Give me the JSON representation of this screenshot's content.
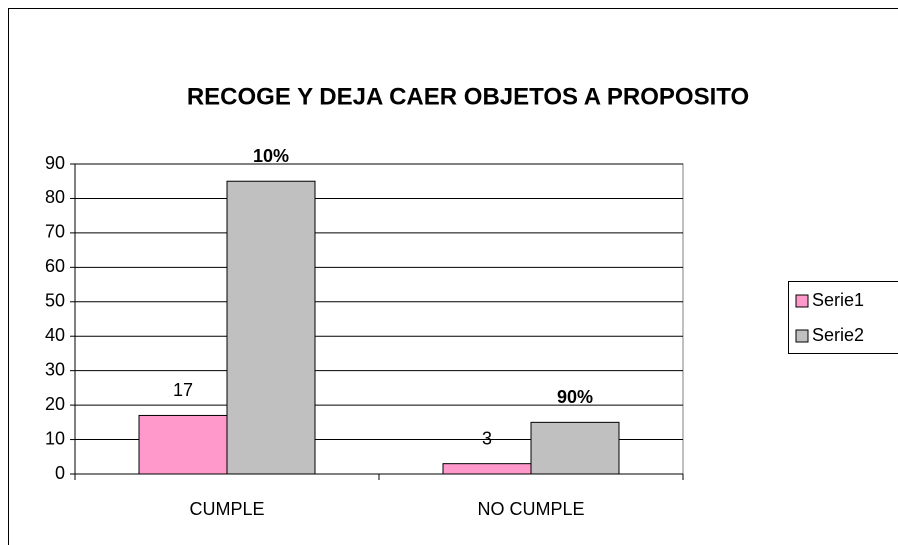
{
  "chart_data": {
    "type": "bar",
    "title": "RECOGE Y DEJA CAER OBJETOS A PROPOSITO",
    "categories": [
      "CUMPLE",
      "NO CUMPLE"
    ],
    "series": [
      {
        "name": "Serie1",
        "color": "#ff99cc",
        "values": [
          17,
          3
        ],
        "data_labels": true
      },
      {
        "name": "Serie2",
        "color": "#c0c0c0",
        "values": [
          85,
          15
        ],
        "data_labels": false
      }
    ],
    "annotations": [
      "10%",
      "90%"
    ],
    "ylim": [
      0,
      90
    ],
    "yticks": [
      0,
      10,
      20,
      30,
      40,
      50,
      60,
      70,
      80,
      90
    ],
    "grid": true,
    "legend": "right"
  }
}
